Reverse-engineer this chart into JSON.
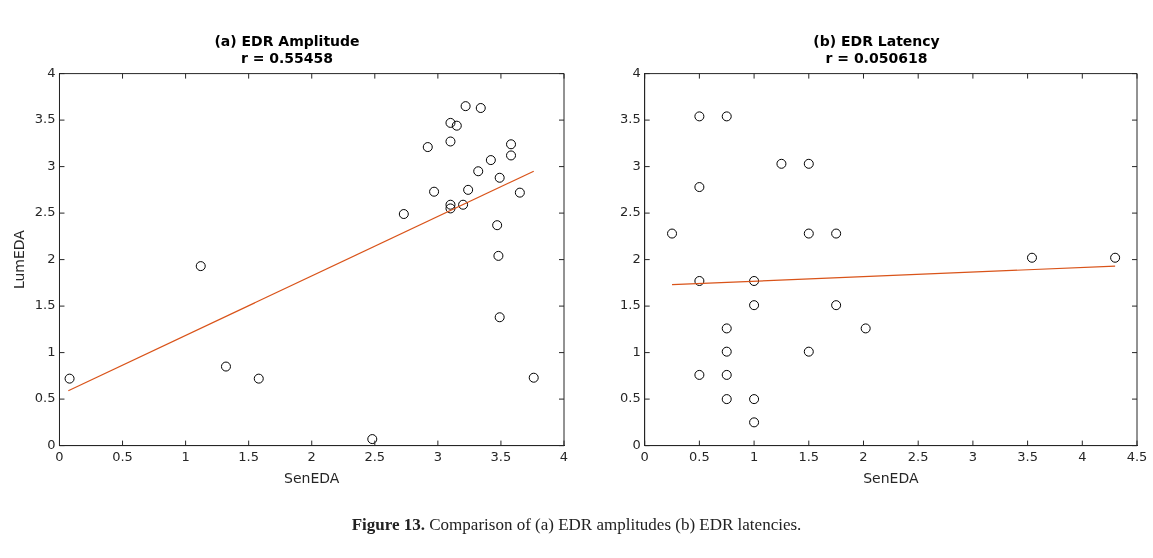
{
  "chart_data": [
    {
      "type": "scatter",
      "title": "(a) EDR Amplitude",
      "subtitle": "r = 0.55458",
      "xlabel": "SenEDA",
      "ylabel": "LumEDA",
      "xlim": [
        0,
        4
      ],
      "xticks": [
        0,
        0.5,
        1,
        1.5,
        2,
        2.5,
        3,
        3.5,
        4
      ],
      "ylim": [
        0,
        4
      ],
      "yticks": [
        0,
        0.5,
        1,
        1.5,
        2,
        2.5,
        3,
        3.5,
        4
      ],
      "grid": false,
      "legend": false,
      "annotations": [
        "Figure 13. Comparison of (a) EDR amplitudes (b) EDR latencies."
      ],
      "series": [
        {
          "marker": "circle",
          "color": "#000000",
          "x": [
            0.08,
            1.12,
            1.32,
            1.58,
            2.48,
            2.73,
            2.92,
            2.97,
            3.1,
            3.1,
            3.15,
            3.22,
            3.34,
            3.1,
            3.1,
            3.2,
            3.24,
            3.32,
            3.42,
            3.49,
            3.58,
            3.58,
            3.65,
            3.47,
            3.48,
            3.49,
            3.76
          ],
          "values": [
            0.72,
            1.93,
            0.85,
            0.72,
            0.07,
            2.49,
            3.21,
            2.73,
            3.47,
            3.27,
            3.44,
            3.65,
            3.63,
            2.59,
            2.55,
            2.59,
            2.75,
            2.95,
            3.07,
            2.88,
            3.24,
            3.12,
            2.72,
            2.37,
            2.04,
            1.38,
            0.73
          ]
        },
        {
          "type": "line",
          "marker": "none",
          "line_style": "solid",
          "color": "#d95319",
          "x": [
            0.07,
            3.76
          ],
          "values": [
            0.59,
            2.95
          ]
        }
      ]
    },
    {
      "type": "scatter",
      "title": "(b) EDR Latency",
      "subtitle": "r = 0.050618",
      "xlabel": "SenEDA",
      "xlim": [
        0,
        4.5
      ],
      "xticks": [
        0,
        0.5,
        1,
        1.5,
        2,
        2.5,
        3,
        3.5,
        4,
        4.5
      ],
      "ylim": [
        0,
        4
      ],
      "yticks": [
        0,
        0.5,
        1,
        1.5,
        2,
        2.5,
        3,
        3.5,
        4
      ],
      "grid": false,
      "legend": false,
      "series": [
        {
          "marker": "circle",
          "color": "#000000",
          "x": [
            0.25,
            0.5,
            0.75,
            1.25,
            1.5,
            0.5,
            1.5,
            1.75,
            3.54,
            4.3,
            0.5,
            1.0,
            1.0,
            1.75,
            0.75,
            2.02,
            0.75,
            1.5,
            0.5,
            0.75,
            0.75,
            1.0,
            1.0
          ],
          "values": [
            2.28,
            3.54,
            3.54,
            3.03,
            3.03,
            2.78,
            2.28,
            2.28,
            2.02,
            2.02,
            1.77,
            1.77,
            1.51,
            1.51,
            1.26,
            1.26,
            1.01,
            1.01,
            0.76,
            0.76,
            0.5,
            0.5,
            0.25
          ]
        },
        {
          "type": "line",
          "marker": "none",
          "line_style": "solid",
          "color": "#d95319",
          "x": [
            0.25,
            4.3
          ],
          "values": [
            1.73,
            1.93
          ]
        }
      ]
    }
  ]
}
